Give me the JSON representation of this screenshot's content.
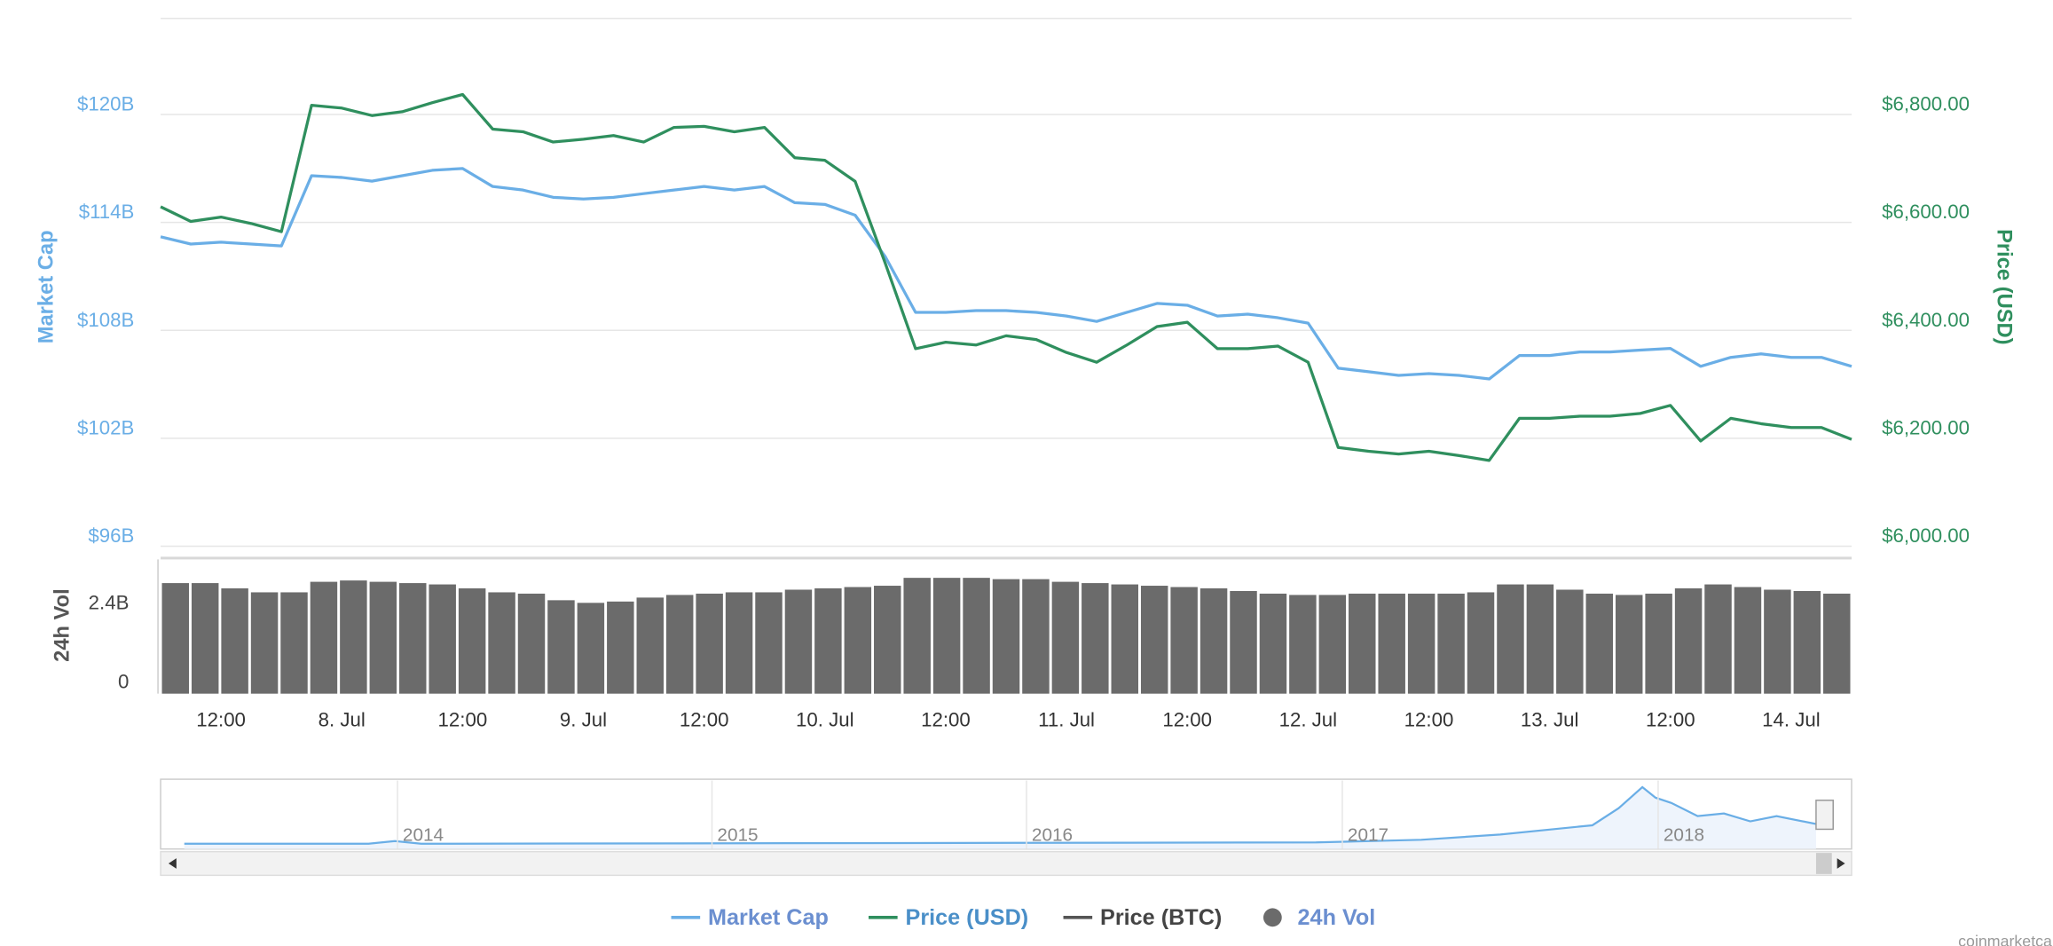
{
  "chart_data": {
    "type": "line",
    "categories": [
      null,
      null,
      "12:00",
      null,
      null,
      null,
      "8. Jul",
      null,
      null,
      null,
      "12:00",
      null,
      null,
      null,
      "9. Jul",
      null,
      null,
      null,
      "12:00",
      null,
      null,
      null,
      "10. Jul",
      null,
      null,
      null,
      "12:00",
      null,
      null,
      null,
      "11. Jul",
      null,
      null,
      null,
      "12:00",
      null,
      null,
      null,
      "12. Jul",
      null,
      null,
      null,
      "12:00",
      null,
      null,
      null,
      "13. Jul",
      null,
      null,
      null,
      "12:00",
      null,
      null,
      null,
      "14. Jul",
      null,
      null
    ],
    "ylabel": "Market Cap",
    "y2label": "Price (USD)",
    "y3label": "24h Vol",
    "ylim": [
      96,
      125.34
    ],
    "yticks": [
      {
        "value": 96,
        "label": "$96B"
      },
      {
        "value": 102,
        "label": "$102B"
      },
      {
        "value": 108,
        "label": "$108B"
      },
      {
        "value": 114,
        "label": "$114B"
      },
      {
        "value": 120,
        "label": "$120B"
      }
    ],
    "y2lim": [
      6000,
      6978
    ],
    "y2ticks": [
      {
        "value": 6000,
        "label": "$6,000.00"
      },
      {
        "value": 6200,
        "label": "$6,200.00"
      },
      {
        "value": 6400,
        "label": "$6,400.00"
      },
      {
        "value": 6600,
        "label": "$6,600.00"
      },
      {
        "value": 6800,
        "label": "$6,800.00"
      }
    ],
    "y3lim": [
      0,
      4.08
    ],
    "y3ticks": [
      0,
      {
        "value": 2.4,
        "label": "2.4B"
      }
    ],
    "grid": true,
    "legend": "bottom",
    "series": [
      {
        "name": "Market Cap",
        "color": "#6aaee6",
        "axis": "y",
        "values": [
          113.2,
          112.8,
          112.9,
          112.8,
          112.7,
          116.6,
          116.5,
          116.3,
          116.6,
          116.9,
          117.0,
          116.0,
          115.8,
          115.4,
          115.3,
          115.4,
          115.6,
          115.8,
          116.0,
          115.8,
          116.0,
          115.1,
          115.0,
          114.4,
          112.1,
          109.0,
          109.0,
          109.1,
          109.1,
          109.0,
          108.8,
          108.5,
          109.0,
          109.5,
          109.4,
          108.8,
          108.9,
          108.7,
          108.4,
          105.9,
          105.7,
          105.5,
          105.6,
          105.5,
          105.3,
          106.6,
          106.6,
          106.8,
          106.8,
          106.9,
          107.0,
          106.0,
          106.5,
          106.7,
          106.5,
          106.5,
          106.0
        ]
      },
      {
        "name": "Price (USD)",
        "color": "#2f8f5e",
        "axis": "y2",
        "values": [
          6629,
          6602,
          6610,
          6598,
          6583,
          6817,
          6812,
          6798,
          6805,
          6822,
          6837,
          6773,
          6768,
          6749,
          6754,
          6761,
          6749,
          6776,
          6778,
          6768,
          6776,
          6720,
          6715,
          6676,
          6524,
          6366,
          6378,
          6373,
          6390,
          6383,
          6359,
          6341,
          6373,
          6407,
          6415,
          6366,
          6366,
          6371,
          6341,
          6183,
          6176,
          6171,
          6176,
          6168,
          6159,
          6237,
          6237,
          6241,
          6241,
          6246,
          6261,
          6195,
          6237,
          6227,
          6220,
          6220,
          6198
        ]
      },
      {
        "name": "24h Vol",
        "color": "#6b6b6b",
        "axis": "y3",
        "kind": "bar",
        "values": [
          3.36,
          3.36,
          3.2,
          3.08,
          3.08,
          3.4,
          3.44,
          3.4,
          3.36,
          3.32,
          3.2,
          3.08,
          3.04,
          2.84,
          2.76,
          2.8,
          2.92,
          3.0,
          3.04,
          3.08,
          3.08,
          3.16,
          3.2,
          3.24,
          3.28,
          3.52,
          3.52,
          3.52,
          3.48,
          3.48,
          3.4,
          3.36,
          3.32,
          3.28,
          3.24,
          3.2,
          3.12,
          3.04,
          3.0,
          3.0,
          3.04,
          3.04,
          3.04,
          3.04,
          3.08,
          3.32,
          3.32,
          3.16,
          3.04,
          3.0,
          3.04,
          3.2,
          3.32,
          3.24,
          3.16,
          3.12,
          3.04
        ]
      }
    ],
    "hidden_series": [
      {
        "name": "Price (BTC)",
        "color": "#555555"
      }
    ],
    "navigator_labels": [
      "2014",
      "2015",
      "2016",
      "2017",
      "2018"
    ],
    "credit": "coinmarketcap.com"
  }
}
